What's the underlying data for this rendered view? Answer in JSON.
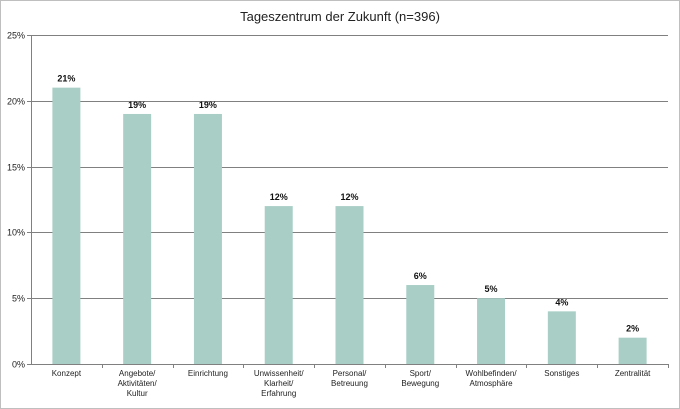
{
  "chart_data": {
    "type": "bar",
    "title": "Tageszentrum der Zukunft (n=396)",
    "categories": [
      [
        "Konzept"
      ],
      [
        "Angebote/",
        "Aktivitäten/",
        "Kultur"
      ],
      [
        "Einrichtung"
      ],
      [
        "Unwissenheit/",
        "Klarheit/",
        "Erfahrung"
      ],
      [
        "Personal/",
        "Betreuung"
      ],
      [
        "Sport/",
        "Bewegung"
      ],
      [
        "Wohlbefinden/",
        "Atmosphäre"
      ],
      [
        "Sonstiges"
      ],
      [
        "Zentralität"
      ]
    ],
    "values": [
      21,
      19,
      19,
      12,
      12,
      6,
      5,
      4,
      2
    ],
    "data_labels": [
      "21%",
      "19%",
      "19%",
      "12%",
      "12%",
      "6%",
      "5%",
      "4%",
      "2%"
    ],
    "ylim": [
      0,
      25
    ],
    "yticks": [
      0,
      5,
      10,
      15,
      20,
      25
    ],
    "ytick_labels": [
      "0%",
      "5%",
      "10%",
      "15%",
      "20%",
      "25%"
    ],
    "grid": true,
    "legend": "none",
    "bar_color": "#a9cec6",
    "grid_color": "#808080"
  }
}
